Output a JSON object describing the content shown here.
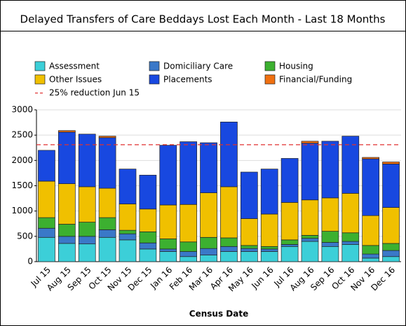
{
  "chart_data": {
    "type": "stacked_bar",
    "title": "Delayed Transfers of Care Beddays Lost Each Month - Last 18 Months",
    "x_label": "Census Date",
    "categories": [
      "Jul 15",
      "Aug 15",
      "Sep 15",
      "Oct 15",
      "Nov 15",
      "Dec 15",
      "Jan 16",
      "Feb 16",
      "Mar 16",
      "Apr 16",
      "May 16",
      "Jun 16",
      "Jul 16",
      "Aug 16",
      "Sep 16",
      "Oct 16",
      "Nov 16",
      "Dec 16"
    ],
    "series": [
      {
        "name": "Assessment",
        "color": "#3ccfd8",
        "values": [
          480,
          360,
          350,
          480,
          430,
          250,
          200,
          100,
          130,
          200,
          200,
          200,
          300,
          400,
          300,
          340,
          70,
          100
        ]
      },
      {
        "name": "Domiciliary Care",
        "color": "#3a78c8",
        "values": [
          180,
          140,
          150,
          150,
          120,
          120,
          50,
          100,
          130,
          100,
          60,
          50,
          40,
          60,
          80,
          60,
          80,
          120
        ]
      },
      {
        "name": "Housing",
        "color": "#3cb030",
        "values": [
          210,
          240,
          280,
          240,
          70,
          220,
          200,
          190,
          220,
          170,
          60,
          50,
          90,
          60,
          220,
          170,
          170,
          140
        ]
      },
      {
        "name": "Other Issues",
        "color": "#f0c000",
        "values": [
          720,
          800,
          700,
          580,
          520,
          450,
          670,
          740,
          880,
          1010,
          530,
          640,
          740,
          700,
          660,
          780,
          590,
          710
        ]
      },
      {
        "name": "Placements",
        "color": "#1848e0",
        "values": [
          610,
          1020,
          1040,
          1000,
          690,
          670,
          1180,
          1240,
          990,
          1280,
          920,
          890,
          870,
          1120,
          1120,
          1130,
          1120,
          860
        ]
      },
      {
        "name": "Financial/Funding",
        "color": "#f07010",
        "values": [
          0,
          30,
          0,
          30,
          0,
          0,
          0,
          0,
          0,
          0,
          0,
          0,
          0,
          40,
          0,
          0,
          30,
          40
        ]
      }
    ],
    "reference_line": {
      "name": "25% reduction Jun 15",
      "value": 2310,
      "color": "#e03030"
    },
    "ylim": [
      0,
      3000
    ],
    "yticks": [
      0,
      500,
      1000,
      1500,
      2000,
      2500,
      3000
    ],
    "grid": true
  }
}
